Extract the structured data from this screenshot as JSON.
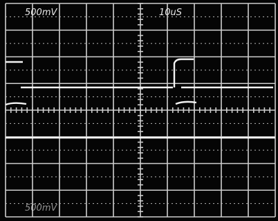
{
  "screen": {
    "ch1_scale": "500mV",
    "timebase": "10uS",
    "ch2_scale": "500mV"
  }
}
